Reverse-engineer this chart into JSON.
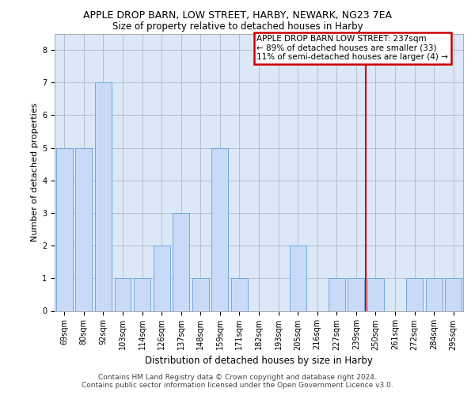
{
  "title": "APPLE DROP BARN, LOW STREET, HARBY, NEWARK, NG23 7EA",
  "subtitle": "Size of property relative to detached houses in Harby",
  "xlabel": "Distribution of detached houses by size in Harby",
  "ylabel": "Number of detached properties",
  "categories": [
    "69sqm",
    "80sqm",
    "92sqm",
    "103sqm",
    "114sqm",
    "126sqm",
    "137sqm",
    "148sqm",
    "159sqm",
    "171sqm",
    "182sqm",
    "193sqm",
    "205sqm",
    "216sqm",
    "227sqm",
    "239sqm",
    "250sqm",
    "261sqm",
    "272sqm",
    "284sqm",
    "295sqm"
  ],
  "values": [
    5,
    5,
    7,
    1,
    1,
    2,
    3,
    1,
    5,
    1,
    0,
    0,
    2,
    0,
    1,
    1,
    1,
    0,
    1,
    1,
    1
  ],
  "bar_color": "#c9daf8",
  "bar_edge_color": "#6fa8dc",
  "grid_color": "#b0b8c8",
  "vline_color": "#cc0000",
  "vline_x_index": 15,
  "box_text_line1": "APPLE DROP BARN LOW STREET: 237sqm",
  "box_text_line2": "← 89% of detached houses are smaller (33)",
  "box_text_line3": "11% of semi-detached houses are larger (4) →",
  "box_color": "#cc0000",
  "box_fill": "#ffffff",
  "ylim": [
    0,
    8.5
  ],
  "yticks": [
    0,
    1,
    2,
    3,
    4,
    5,
    6,
    7,
    8
  ],
  "footer_line1": "Contains HM Land Registry data © Crown copyright and database right 2024.",
  "footer_line2": "Contains public sector information licensed under the Open Government Licence v3.0.",
  "bg_color": "#dce8f8",
  "title_fontsize": 9,
  "subtitle_fontsize": 8.5,
  "xlabel_fontsize": 8.5,
  "ylabel_fontsize": 8,
  "tick_fontsize": 7,
  "footer_fontsize": 6.5,
  "annotation_fontsize": 7.5
}
